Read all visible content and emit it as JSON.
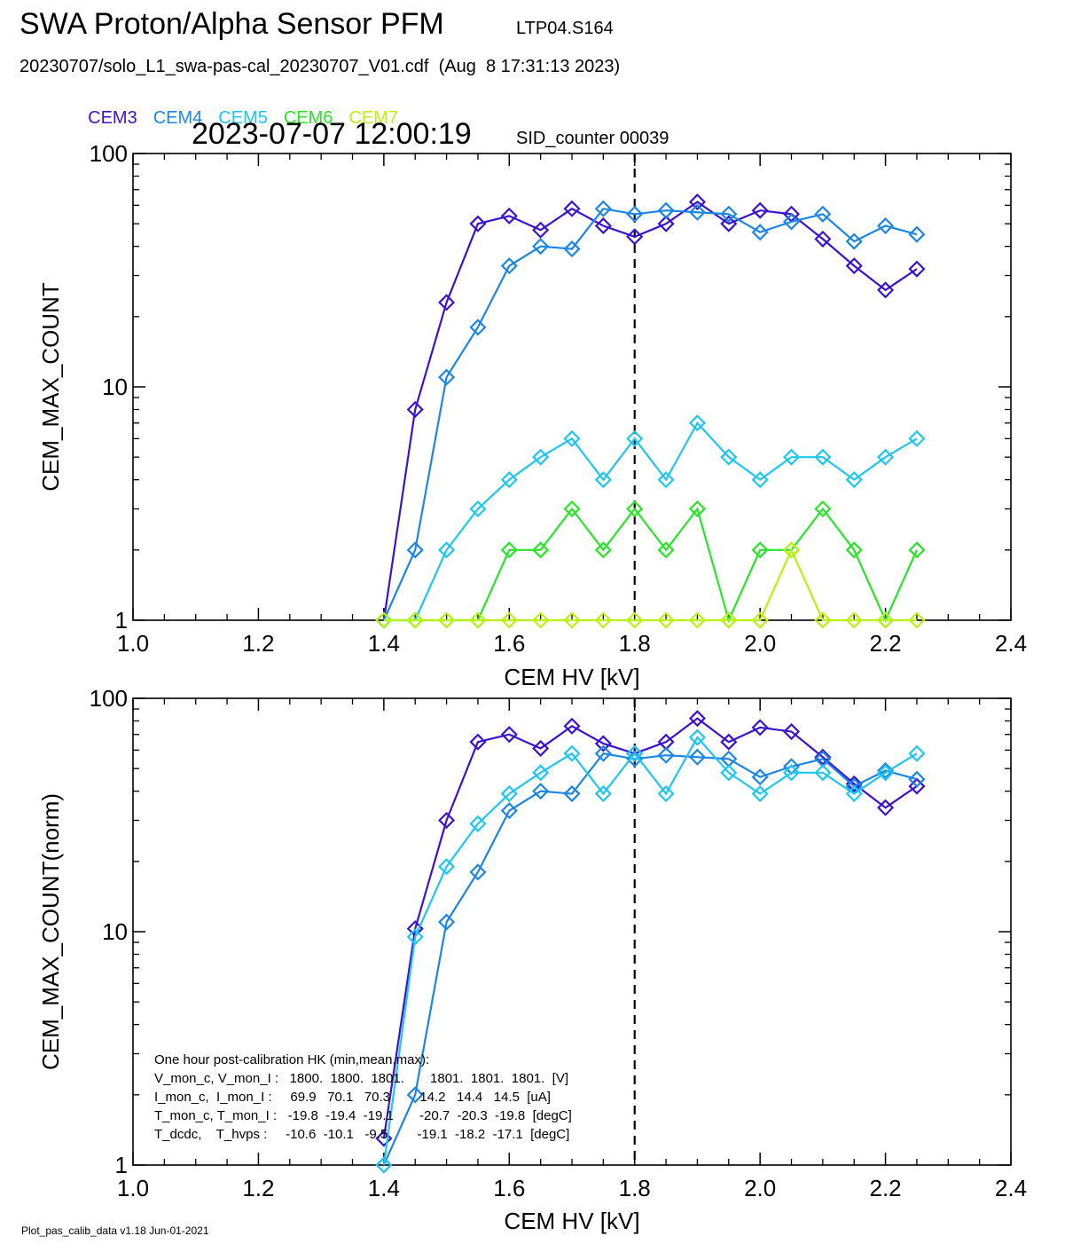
{
  "header": {
    "title": "SWA Proton/Alpha Sensor PFM",
    "subtitle": "LTP04.S164",
    "file": "20230707/solo_L1_swa-pas-cal_20230707_V01.cdf  (Aug  8 17:31:13 2023)",
    "timestamp": "2023-07-07 12:00:19",
    "sid_label": "SID_counter 00039"
  },
  "legend": [
    {
      "name": "CEM3",
      "color": "#3b12d4"
    },
    {
      "name": "CEM4",
      "color": "#1c86e8"
    },
    {
      "name": "CEM5",
      "color": "#1ec7f2"
    },
    {
      "name": "CEM6",
      "color": "#26e626"
    },
    {
      "name": "CEM7",
      "color": "#b9f20f"
    }
  ],
  "footer": "Plot_pas_calib_data v1.18 Jun-01-2021",
  "hk_text": [
    "One hour post-calibration HK (min,mean,max):",
    "V_mon_c, V_mon_I :   1800.  1800.  1801.       1801.  1801.  1801.  [V]",
    "I_mon_c,  I_mon_I :     69.9   70.1   70.3        14.2   14.4   14.5  [uA]",
    "T_mon_c, T_mon_I :   -19.8  -19.4  -19.1       -20.7  -20.3  -19.8  [degC]",
    "T_dcdc,    T_hvps :     -10.6  -10.1   -9.5        -19.1  -18.2  -17.1  [degC]"
  ],
  "chart_data": [
    {
      "type": "line",
      "xlabel": "CEM HV [kV]",
      "ylabel": "CEM_MAX_COUNT",
      "xlim": [
        1.0,
        2.4
      ],
      "ylim": [
        1,
        100
      ],
      "yscale": "log",
      "x_ticks": [
        "1.0",
        "1.2",
        "1.4",
        "1.6",
        "1.8",
        "2.0",
        "2.2",
        "2.4"
      ],
      "y_ticks": [
        "1",
        "10",
        "100"
      ],
      "vline_x": 1.8,
      "x": [
        1.4,
        1.45,
        1.5,
        1.55,
        1.6,
        1.65,
        1.7,
        1.75,
        1.8,
        1.85,
        1.9,
        1.95,
        2.0,
        2.05,
        2.1,
        2.15,
        2.2,
        2.25
      ],
      "series": [
        {
          "name": "CEM3",
          "color": "#3b12d4",
          "values": [
            1,
            8,
            23,
            50,
            54,
            47,
            58,
            49,
            44,
            50,
            62,
            50,
            57,
            55,
            43,
            33,
            26,
            32
          ]
        },
        {
          "name": "CEM4",
          "color": "#1c86e8",
          "values": [
            1,
            2,
            11,
            18,
            33,
            40,
            39,
            58,
            55,
            57,
            56,
            55,
            46,
            51,
            55,
            42,
            49,
            45
          ]
        },
        {
          "name": "CEM5",
          "color": "#1ec7f2",
          "values": [
            1,
            1,
            2,
            3,
            4,
            5,
            6,
            4,
            6,
            4,
            7,
            5,
            4,
            5,
            5,
            4,
            5,
            6
          ]
        },
        {
          "name": "CEM6",
          "color": "#26e626",
          "values": [
            1,
            1,
            1,
            1,
            2,
            2,
            3,
            2,
            3,
            2,
            3,
            1,
            2,
            2,
            3,
            2,
            1,
            2
          ]
        },
        {
          "name": "CEM7",
          "color": "#b9f20f",
          "values": [
            1,
            1,
            1,
            1,
            1,
            1,
            1,
            1,
            1,
            1,
            1,
            1,
            1,
            2,
            1,
            1,
            1,
            1
          ]
        }
      ]
    },
    {
      "type": "line",
      "xlabel": "CEM HV [kV]",
      "ylabel": "CEM_MAX_COUNT(norm)",
      "xlim": [
        1.0,
        2.4
      ],
      "ylim": [
        1,
        100
      ],
      "yscale": "log",
      "x_ticks": [
        "1.0",
        "1.2",
        "1.4",
        "1.6",
        "1.8",
        "2.0",
        "2.2",
        "2.4"
      ],
      "y_ticks": [
        "1",
        "10",
        "100"
      ],
      "vline_x": 1.8,
      "x": [
        1.4,
        1.45,
        1.5,
        1.55,
        1.6,
        1.65,
        1.7,
        1.75,
        1.8,
        1.85,
        1.9,
        1.95,
        2.0,
        2.05,
        2.1,
        2.15,
        2.2,
        2.25
      ],
      "series": [
        {
          "name": "CEM3",
          "color": "#3b12d4",
          "values": [
            1.3,
            10.3,
            30,
            65,
            70,
            61,
            76,
            64,
            58,
            65,
            82,
            65,
            75,
            72,
            56,
            43,
            34,
            42
          ]
        },
        {
          "name": "CEM4",
          "color": "#1c86e8",
          "values": [
            1,
            2,
            11,
            18,
            33,
            40,
            39,
            58,
            55,
            57,
            56,
            55,
            46,
            51,
            55,
            42,
            49,
            45
          ]
        },
        {
          "name": "CEM5",
          "color": "#1ec7f2",
          "values": [
            1,
            9.5,
            19,
            29,
            39,
            48,
            58,
            39,
            58,
            39,
            68,
            48,
            39,
            48,
            48,
            39,
            48,
            58
          ]
        }
      ]
    }
  ]
}
